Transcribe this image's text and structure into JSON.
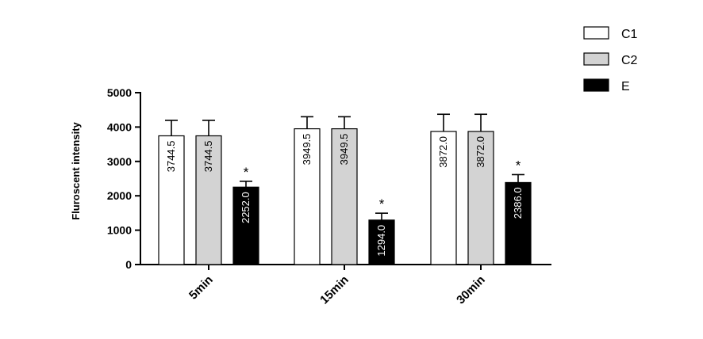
{
  "chart_data": {
    "type": "bar",
    "ylabel": "Fluroscent intensity",
    "xlabel": "",
    "categories": [
      "5min",
      "15min",
      "30min"
    ],
    "ylim": [
      0,
      5000
    ],
    "yticks": [
      0,
      1000,
      2000,
      3000,
      4000,
      5000
    ],
    "legend_position": "top-right",
    "grid": false,
    "series": [
      {
        "name": "C1",
        "values": [
          3744.5,
          3949.5,
          3872.0
        ],
        "errors": [
          450,
          350,
          500
        ],
        "color": "#ffffff",
        "value_labels": [
          "3744.5",
          "3949.5",
          "3872.0"
        ]
      },
      {
        "name": "C2",
        "values": [
          3744.5,
          3949.5,
          3872.0
        ],
        "errors": [
          450,
          350,
          500
        ],
        "color": "#d3d3d3",
        "value_labels": [
          "3744.5",
          "3949.5",
          "3872.0"
        ]
      },
      {
        "name": "E",
        "values": [
          2252.0,
          1294.0,
          2386.0
        ],
        "errors": [
          170,
          200,
          230
        ],
        "color": "#000000",
        "value_labels": [
          "2252.0",
          "1294.0",
          "2386.0"
        ],
        "annotations": [
          "*",
          "*",
          "*"
        ]
      }
    ]
  }
}
